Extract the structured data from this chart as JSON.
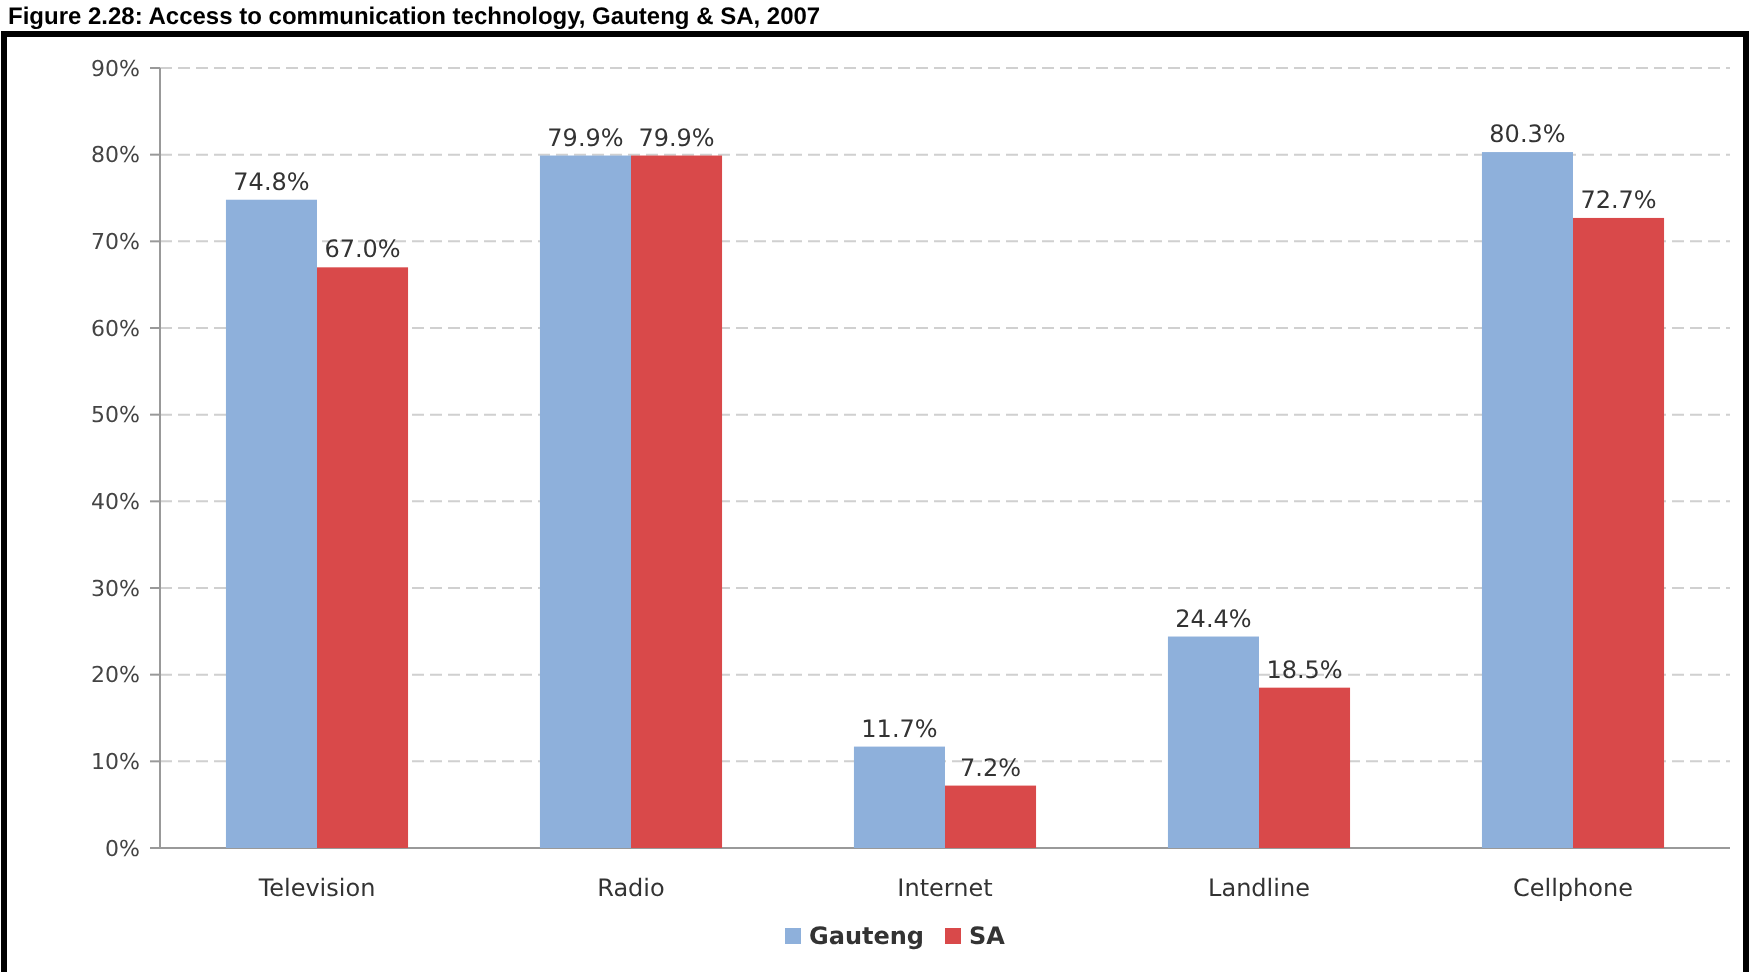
{
  "chart_data": {
    "type": "bar",
    "title": "Figure 2.28: Access to communication technology, Gauteng & SA, 2007",
    "categories": [
      "Television",
      "Radio",
      "Internet",
      "Landline",
      "Cellphone"
    ],
    "series": [
      {
        "name": "Gauteng",
        "color": "#8eb0db",
        "values": [
          74.8,
          79.9,
          11.7,
          24.4,
          80.3
        ]
      },
      {
        "name": "SA",
        "color": "#d9494a",
        "values": [
          67.0,
          79.9,
          7.2,
          18.5,
          72.7
        ]
      }
    ],
    "ylim": [
      0,
      90
    ],
    "yticks": [
      {
        "value": 0,
        "label": "0%"
      },
      {
        "value": 10,
        "label": "10%"
      },
      {
        "value": 20,
        "label": "20%"
      },
      {
        "value": 30,
        "label": "30%"
      },
      {
        "value": 40,
        "label": "40%"
      },
      {
        "value": 50,
        "label": "50%"
      },
      {
        "value": 60,
        "label": "60%"
      },
      {
        "value": 70,
        "label": "70%"
      },
      {
        "value": 80,
        "label": "80%"
      },
      {
        "value": 90,
        "label": "90%"
      }
    ],
    "value_labels": [
      [
        "74.8%",
        "79.9%",
        "11.7%",
        "24.4%",
        "80.3%"
      ],
      [
        "67.0%",
        "79.9%",
        "7.2%",
        "18.5%",
        "72.7%"
      ]
    ],
    "grid": "y",
    "legend": "bottom"
  }
}
